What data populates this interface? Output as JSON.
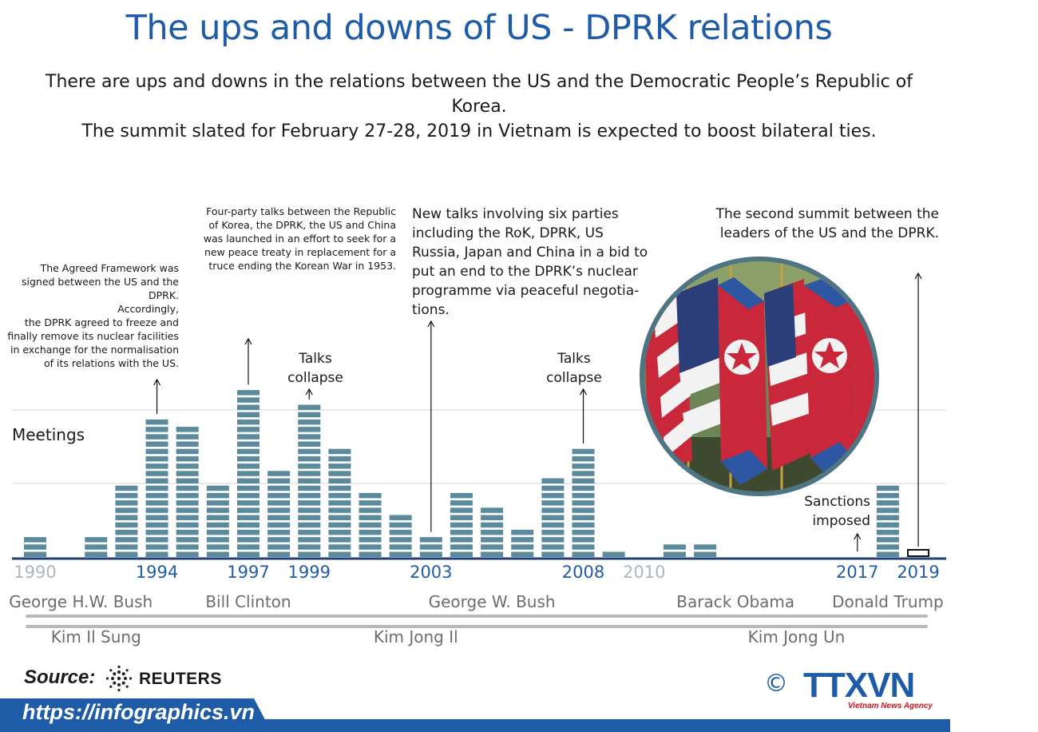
{
  "title": "The ups and downs of US - DPRK relations",
  "intro": {
    "line1": "There are ups and downs in the relations between the US and the Democratic People’s Republic of Korea.",
    "line2": "The summit slated for February 27-28, 2019 in Vietnam is expected to boost bilateral ties."
  },
  "annotations": {
    "agreed_framework": "The  Agreed Framework was signed between the US and the DPRK.\nAccordingly,\nthe DPRK agreed to freeze and finally remove its nuclear facilities in exchange for the normalisation of its relations with the US.",
    "four_party": "Four-party talks between the Republic of Korea, the DPRK, the US and China was launched in an effort to seek for a new peace treaty in replacement for a truce ending the Korean War in 1953.",
    "six_party": "New talks involving six parties including the RoK, DPRK, US Russia, Japan and China in a bid to put an end to the DPRK’s nuclear programme via peaceful negotia-tions.",
    "second_summit": "The second summit between the leaders of the US and the DPRK.",
    "talks_collapse_1": "Talks\ncollapse",
    "talks_collapse_2": "Talks\ncollapse",
    "sanctions": "Sanctions\nimposed"
  },
  "chart_data": {
    "type": "bar",
    "ylabel": "Meetings",
    "x": [
      1990,
      1991,
      1992,
      1993,
      1994,
      1995,
      1996,
      1997,
      1998,
      1999,
      2000,
      2001,
      2002,
      2003,
      2004,
      2005,
      2006,
      2007,
      2008,
      2009,
      2010,
      2011,
      2012,
      2013,
      2014,
      2015,
      2016,
      2017,
      2018,
      2019
    ],
    "values": [
      3,
      0,
      3,
      10,
      19,
      18,
      10,
      23,
      12,
      21,
      15,
      9,
      6,
      3,
      9,
      7,
      4,
      11,
      15,
      1,
      0,
      2,
      2,
      0,
      0,
      0,
      0,
      0,
      10,
      1
    ],
    "highlighted": [
      2019
    ],
    "ticks": [
      {
        "label": "1990",
        "year": 1990,
        "major": false
      },
      {
        "label": "1994",
        "year": 1994,
        "major": true
      },
      {
        "label": "1997",
        "year": 1997,
        "major": true
      },
      {
        "label": "1999",
        "year": 1999,
        "major": true
      },
      {
        "label": "2003",
        "year": 2003,
        "major": true
      },
      {
        "label": "2008",
        "year": 2008,
        "major": true
      },
      {
        "label": "2010",
        "year": 2010,
        "major": false
      },
      {
        "label": "2017",
        "year": 2017,
        "major": true
      },
      {
        "label": "2019",
        "year": 2019,
        "major": true
      }
    ],
    "grid": true,
    "colors": {
      "bar": "#5b8a9c",
      "axis": "#1f3f7a",
      "major_tick": "#1f5ca8",
      "minor_tick": "#aeb6bd"
    }
  },
  "us_presidents": [
    {
      "name": "George H.W. Bush",
      "start": 1990,
      "end": 1993
    },
    {
      "name": "Bill Clinton",
      "start": 1993,
      "end": 2001
    },
    {
      "name": "George W. Bush",
      "start": 2001,
      "end": 2009
    },
    {
      "name": "Barack Obama",
      "start": 2009,
      "end": 2017
    },
    {
      "name": "Donald Trump",
      "start": 2017,
      "end": 2019
    }
  ],
  "dprk_leaders": [
    {
      "name": "Kim Il Sung",
      "start": 1990,
      "end": 1994
    },
    {
      "name": "Kim Jong Il",
      "start": 1994,
      "end": 2011
    },
    {
      "name": "Kim Jong Un",
      "start": 2011,
      "end": 2019
    }
  ],
  "footer": {
    "source_label": "Source:",
    "source_name": "REUTERS",
    "url": "https://infographics.vn",
    "copyright": "©",
    "agency": "TTXVN",
    "agency_sub": "Vietnam News Agency"
  },
  "photo": {
    "icon": "flags-photo"
  }
}
